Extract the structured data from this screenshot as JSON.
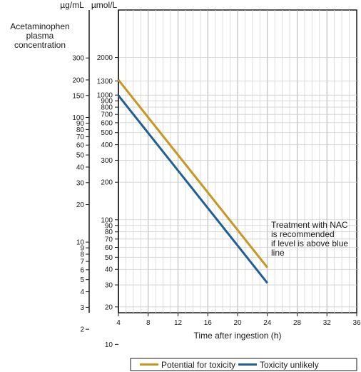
{
  "chart_data": {
    "type": "line",
    "title": "",
    "xlabel": "Time after ingestion (h)",
    "ylabel": "Acetaminophen plasma concentration",
    "y_units_left": "µg/mL",
    "y_units_right": "µmol/L",
    "y_scale": "log",
    "xlim": [
      4,
      36
    ],
    "ylim_ug_ml": [
      1,
      400
    ],
    "x_ticks": [
      4,
      8,
      12,
      16,
      20,
      24,
      28,
      32,
      36
    ],
    "y_ticks_ug_ml": [
      300,
      200,
      150,
      100,
      90,
      80,
      70,
      60,
      50,
      40,
      30,
      20,
      10,
      9,
      8,
      7,
      6,
      5,
      4,
      3,
      2
    ],
    "y_ticks_umol_l": [
      2000,
      1300,
      1000,
      900,
      800,
      700,
      600,
      500,
      400,
      300,
      200,
      100,
      90,
      80,
      70,
      60,
      50,
      40,
      30,
      20,
      10
    ],
    "series": [
      {
        "name": "Potential for toxicity",
        "color": "#c9961f",
        "x": [
          4,
          24
        ],
        "y": [
          200,
          6.25
        ]
      },
      {
        "name": "Toxicity unlikely",
        "color": "#1f5f96",
        "x": [
          4,
          24
        ],
        "y": [
          150,
          4.7
        ]
      }
    ],
    "annotation": [
      "Treatment with NAC",
      "is recommended",
      "if level is above blue",
      "line"
    ],
    "grid": true,
    "legend_position": "bottom"
  }
}
